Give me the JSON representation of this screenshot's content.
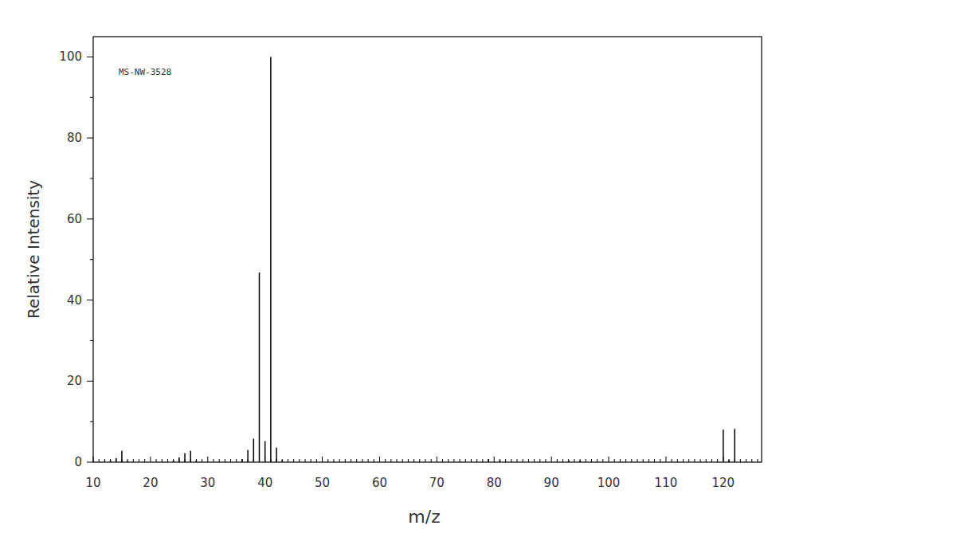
{
  "chart_data": {
    "type": "bar",
    "annotation": "MS-NW-3528",
    "x_label": "m/z",
    "y_label": "Relative Intensity",
    "x": [
      12,
      13,
      14,
      15,
      16,
      24,
      25,
      26,
      27,
      28,
      36,
      37,
      38,
      39,
      40,
      41,
      42,
      43,
      79,
      81,
      93,
      95,
      120,
      121,
      122
    ],
    "values": [
      0.3,
      0.5,
      1,
      2.8,
      0.3,
      0.5,
      1.2,
      2.2,
      2.8,
      0.5,
      0.8,
      3,
      5.8,
      46.8,
      5.2,
      100,
      3.6,
      0.5,
      0.8,
      0.6,
      0.4,
      0.4,
      8,
      0.6,
      8.2
    ],
    "color": "#000000",
    "xlim": [
      10,
      126.7
    ],
    "ylim": [
      0,
      105
    ],
    "xticks": [
      10,
      20,
      30,
      40,
      50,
      60,
      70,
      80,
      90,
      100,
      110,
      120
    ],
    "yticks": [
      0,
      20,
      40,
      60,
      80,
      100
    ]
  }
}
